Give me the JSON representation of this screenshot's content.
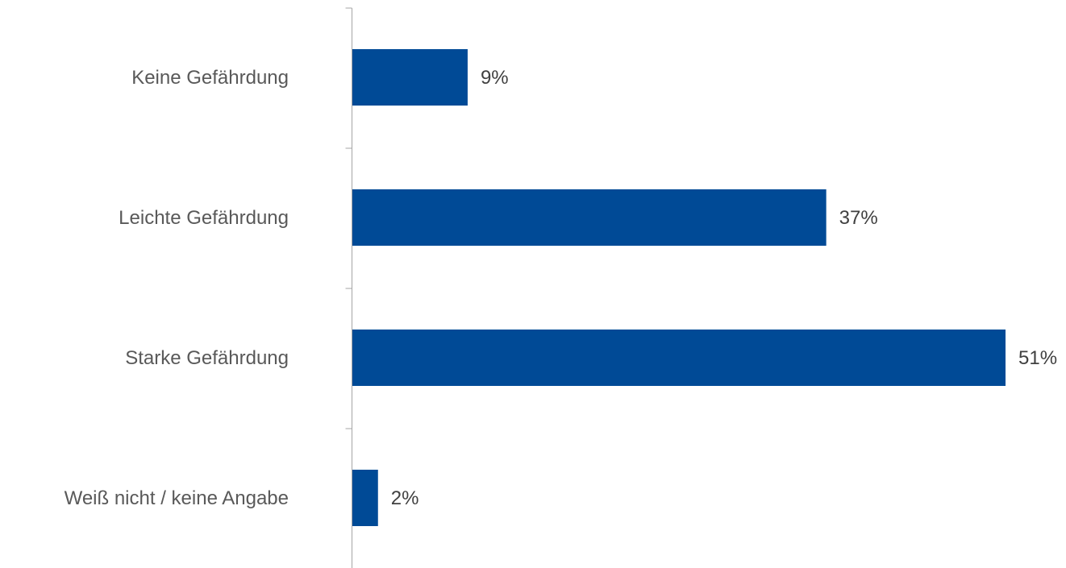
{
  "chart_data": {
    "type": "bar",
    "orientation": "horizontal",
    "categories": [
      "Keine Gefährdung",
      "Leichte Gefährdung",
      "Starke Gefährdung",
      "Weiß nicht / keine Angabe"
    ],
    "values": [
      9,
      37,
      51,
      2
    ],
    "value_labels": [
      "9%",
      "37%",
      "51%",
      "2%"
    ],
    "unit": "%",
    "xlim": [
      0,
      51
    ],
    "grid": false,
    "legend": "none",
    "bar_color": "#004A96",
    "axis_color": "#A6A6A6",
    "label_color": "#595959"
  }
}
